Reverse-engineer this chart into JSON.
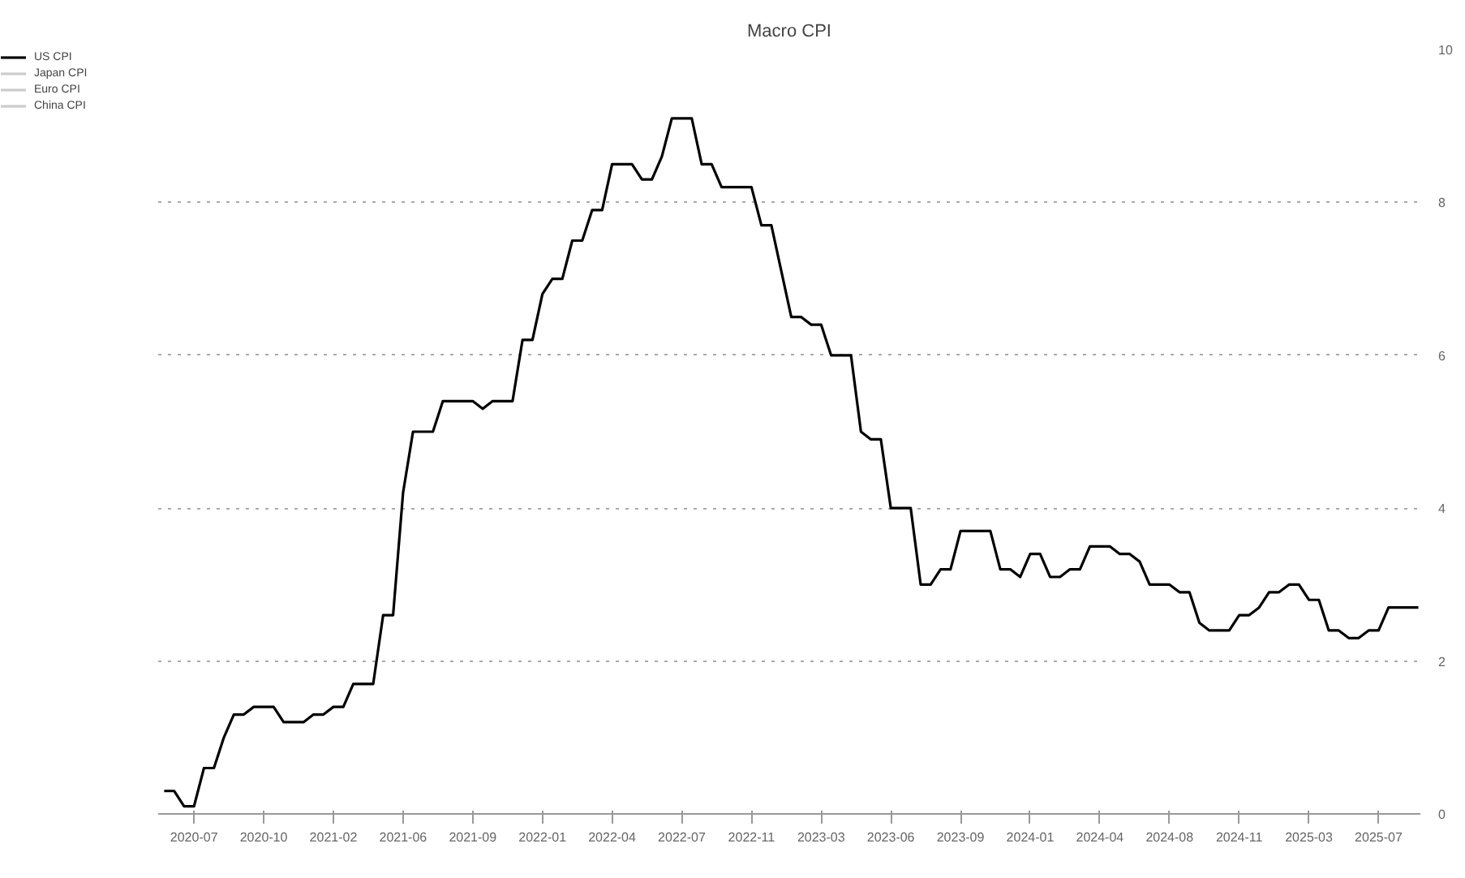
{
  "chart_data": {
    "type": "line",
    "title": "Macro CPI",
    "categories": [
      null,
      null,
      null,
      "2020-07",
      null,
      null,
      null,
      null,
      null,
      null,
      "2020-10",
      null,
      null,
      null,
      null,
      null,
      null,
      "2021-02",
      null,
      null,
      null,
      null,
      null,
      null,
      "2021-06",
      null,
      null,
      null,
      null,
      null,
      null,
      "2021-09",
      null,
      null,
      null,
      null,
      null,
      null,
      "2022-01",
      null,
      null,
      null,
      null,
      null,
      null,
      "2022-04",
      null,
      null,
      null,
      null,
      null,
      null,
      "2022-07",
      null,
      null,
      null,
      null,
      null,
      null,
      "2022-11",
      null,
      null,
      null,
      null,
      null,
      null,
      "2023-03",
      null,
      null,
      null,
      null,
      null,
      null,
      "2023-06",
      null,
      null,
      null,
      null,
      null,
      null,
      "2023-09",
      null,
      null,
      null,
      null,
      null,
      null,
      "2024-01",
      null,
      null,
      null,
      null,
      null,
      null,
      "2024-04",
      null,
      null,
      null,
      null,
      null,
      null,
      "2024-08",
      null,
      null,
      null,
      null,
      null,
      null,
      "2024-11",
      null,
      null,
      null,
      null,
      null,
      null,
      "2025-03",
      null,
      null,
      null,
      null,
      null,
      null,
      "2025-07",
      null,
      null,
      null,
      null
    ],
    "series": [
      {
        "name": "US CPI",
        "color": "#000000",
        "values": [
          0.3,
          0.3,
          0.1,
          0.1,
          0.6,
          0.6,
          1.0,
          1.3,
          1.3,
          1.4,
          1.4,
          1.4,
          1.2,
          1.2,
          1.2,
          1.3,
          1.3,
          1.4,
          1.4,
          1.7,
          1.7,
          1.7,
          2.6,
          2.6,
          4.2,
          5.0,
          5.0,
          5.0,
          5.4,
          5.4,
          5.4,
          5.4,
          5.3,
          5.4,
          5.4,
          5.4,
          6.2,
          6.2,
          6.8,
          7.0,
          7.0,
          7.5,
          7.5,
          7.9,
          7.9,
          8.5,
          8.5,
          8.5,
          8.3,
          8.3,
          8.6,
          9.1,
          9.1,
          9.1,
          8.5,
          8.5,
          8.2,
          8.2,
          8.2,
          8.2,
          7.7,
          7.7,
          7.1,
          6.5,
          6.5,
          6.4,
          6.4,
          6.0,
          6.0,
          6.0,
          5.0,
          4.9,
          4.9,
          4.0,
          4.0,
          4.0,
          3.0,
          3.0,
          3.2,
          3.2,
          3.7,
          3.7,
          3.7,
          3.7,
          3.2,
          3.2,
          3.1,
          3.4,
          3.4,
          3.1,
          3.1,
          3.2,
          3.2,
          3.5,
          3.5,
          3.5,
          3.4,
          3.4,
          3.3,
          3.0,
          3.0,
          3.0,
          2.9,
          2.9,
          2.5,
          2.4,
          2.4,
          2.4,
          2.6,
          2.6,
          2.7,
          2.9,
          2.9,
          3.0,
          3.0,
          2.8,
          2.8,
          2.4,
          2.4,
          2.3,
          2.3,
          2.4,
          2.4,
          2.7,
          2.7,
          2.7,
          2.7
        ]
      },
      {
        "name": "Japan CPI",
        "color": "#cccccc",
        "values": [
          null,
          null,
          null,
          null,
          null,
          null,
          null,
          null,
          null,
          null,
          null,
          null,
          null,
          null,
          null,
          null,
          null,
          null,
          null,
          null,
          null,
          null,
          null,
          null,
          null,
          null,
          null,
          null,
          null,
          null,
          null,
          null,
          null,
          null,
          null,
          null,
          null,
          null,
          null,
          null,
          null,
          null,
          null,
          null,
          null,
          null,
          null,
          null,
          null,
          null,
          null,
          null,
          null,
          null,
          null,
          null,
          null,
          null,
          null,
          null,
          null,
          null,
          null,
          null,
          null,
          null,
          null,
          null,
          null,
          null,
          null,
          null,
          null,
          null,
          null,
          null,
          null,
          null,
          null,
          null,
          null,
          null,
          null,
          null,
          null,
          null,
          null,
          null,
          null,
          null,
          null,
          null,
          null,
          null,
          null,
          null,
          null,
          null,
          null,
          null,
          null,
          null,
          null,
          null,
          null,
          null,
          null,
          null,
          null,
          null,
          null,
          null,
          null,
          null,
          null,
          null,
          null,
          null,
          null,
          null,
          null,
          null,
          null,
          null,
          null,
          null,
          null
        ]
      },
      {
        "name": "Euro CPI",
        "color": "#cccccc",
        "values": [
          null,
          null,
          null,
          null,
          null,
          null,
          null,
          null,
          null,
          null,
          null,
          null,
          null,
          null,
          null,
          null,
          null,
          null,
          null,
          null,
          null,
          null,
          null,
          null,
          null,
          null,
          null,
          null,
          null,
          null,
          null,
          null,
          null,
          null,
          null,
          null,
          null,
          null,
          null,
          null,
          null,
          null,
          null,
          null,
          null,
          null,
          null,
          null,
          null,
          null,
          null,
          null,
          null,
          null,
          null,
          null,
          null,
          null,
          null,
          null,
          null,
          null,
          null,
          null,
          null,
          null,
          null,
          null,
          null,
          null,
          null,
          null,
          null,
          null,
          null,
          null,
          null,
          null,
          null,
          null,
          null,
          null,
          null,
          null,
          null,
          null,
          null,
          null,
          null,
          null,
          null,
          null,
          null,
          null,
          null,
          null,
          null,
          null,
          null,
          null,
          null,
          null,
          null,
          null,
          null,
          null,
          null,
          null,
          null,
          null,
          null,
          null,
          null,
          null,
          null,
          null,
          null,
          null,
          null,
          null,
          null,
          null,
          null,
          null,
          null,
          null,
          null
        ]
      },
      {
        "name": "China CPI",
        "color": "#cccccc",
        "values": [
          null,
          null,
          null,
          null,
          null,
          null,
          null,
          null,
          null,
          null,
          null,
          null,
          null,
          null,
          null,
          null,
          null,
          null,
          null,
          null,
          null,
          null,
          null,
          null,
          null,
          null,
          null,
          null,
          null,
          null,
          null,
          null,
          null,
          null,
          null,
          null,
          null,
          null,
          null,
          null,
          null,
          null,
          null,
          null,
          null,
          null,
          null,
          null,
          null,
          null,
          null,
          null,
          null,
          null,
          null,
          null,
          null,
          null,
          null,
          null,
          null,
          null,
          null,
          null,
          null,
          null,
          null,
          null,
          null,
          null,
          null,
          null,
          null,
          null,
          null,
          null,
          null,
          null,
          null,
          null,
          null,
          null,
          null,
          null,
          null,
          null,
          null,
          null,
          null,
          null,
          null,
          null,
          null,
          null,
          null,
          null,
          null,
          null,
          null,
          null,
          null,
          null,
          null,
          null,
          null,
          null,
          null,
          null,
          null,
          null,
          null,
          null,
          null,
          null,
          null,
          null,
          null,
          null,
          null,
          null,
          null,
          null,
          null,
          null,
          null,
          null,
          null
        ]
      }
    ],
    "ylim": [
      0,
      10
    ],
    "yticks": [
      0,
      2,
      4,
      6,
      8,
      10
    ],
    "grid": "y",
    "legend": "top left"
  }
}
